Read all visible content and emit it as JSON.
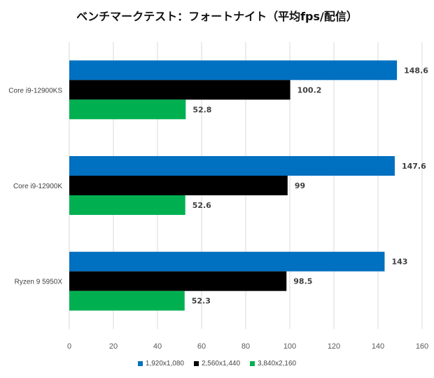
{
  "chart_data": {
    "type": "bar",
    "orientation": "horizontal",
    "title": "ベンチマークテスト：フォートナイト（平均fps/配信）",
    "categories": [
      "Core i9-12900KS",
      "Core i9-12900K",
      "Ryzen 9 5950X"
    ],
    "series": [
      {
        "name": "1,920x1,080",
        "color": "#0070C0",
        "values": [
          148.6,
          147.6,
          143
        ]
      },
      {
        "name": "2,560x1,440",
        "color": "#000000",
        "values": [
          100.2,
          99,
          98.5
        ]
      },
      {
        "name": "3,840x2,160",
        "color": "#00B050",
        "values": [
          52.8,
          52.6,
          52.3
        ]
      }
    ],
    "value_labels": [
      [
        "148.6",
        "147.6",
        "143"
      ],
      [
        "100.2",
        "99",
        "98.5"
      ],
      [
        "52.8",
        "52.6",
        "52.3"
      ]
    ],
    "xlim": [
      0,
      160
    ],
    "xticks": [
      0,
      20,
      40,
      60,
      80,
      100,
      120,
      140,
      160
    ],
    "grid": true,
    "legend_position": "bottom"
  }
}
